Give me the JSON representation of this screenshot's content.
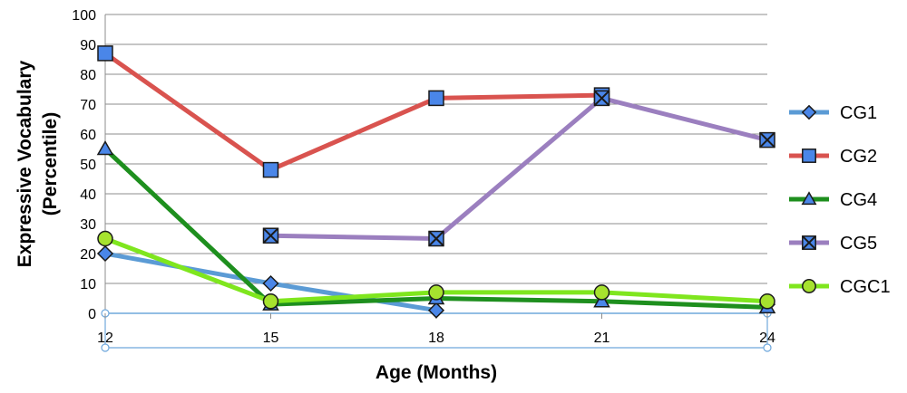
{
  "chart_data": {
    "type": "line",
    "title": "",
    "xlabel": "Age (Months)",
    "ylabel_lines": [
      "Expressive Vocabulary",
      "(Percentile)"
    ],
    "x": [
      12,
      15,
      18,
      21,
      24
    ],
    "x_tick_labels": [
      "12",
      "15",
      "18",
      "21",
      "24"
    ],
    "ylim": [
      0,
      100
    ],
    "y_ticks": [
      0,
      10,
      20,
      30,
      40,
      50,
      60,
      70,
      80,
      90,
      100
    ],
    "grid": "horizontal",
    "legend_position": "right",
    "series": [
      {
        "name": "CG1",
        "color": "#5b9bd5",
        "marker": "diamond",
        "values": [
          20,
          10,
          1,
          null,
          3
        ]
      },
      {
        "name": "CG2",
        "color": "#d9534f",
        "marker": "square",
        "values": [
          87,
          48,
          72,
          73,
          null
        ]
      },
      {
        "name": "CG4",
        "color": "#1e8f1e",
        "marker": "triangle",
        "values": [
          55,
          3,
          5,
          4,
          2
        ]
      },
      {
        "name": "CG5",
        "color": "#9b7fbf",
        "marker": "x",
        "values": [
          null,
          26,
          25,
          72,
          58
        ]
      },
      {
        "name": "CGC1",
        "color": "#7fe61e",
        "marker": "circle",
        "values": [
          25,
          4,
          7,
          7,
          4
        ]
      }
    ],
    "marker_fill": {
      "blue": "#4a86e8",
      "green": "#a6e22e"
    }
  }
}
